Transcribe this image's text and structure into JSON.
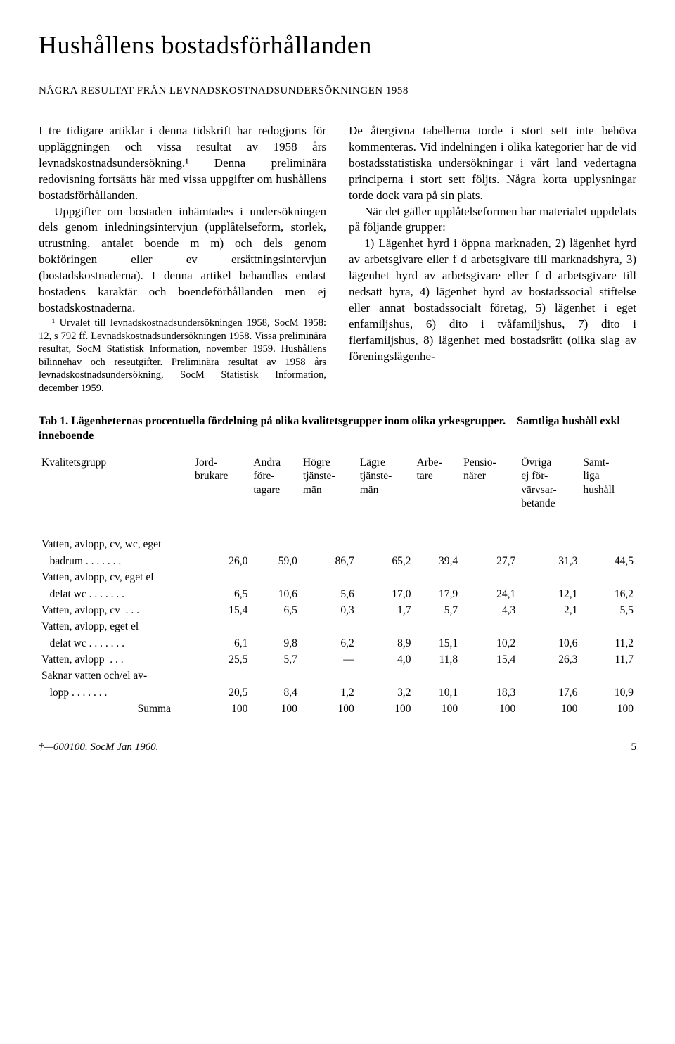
{
  "title": "Hushållens bostadsförhållanden",
  "subtitle": "NÅGRA RESULTAT FRÅN LEVNADSKOSTNADSUNDERSÖKNINGEN 1958",
  "body": {
    "col1_p1": "I tre tidigare artiklar i denna tidskrift har redogjorts för uppläggningen och vissa resultat av 1958 års levnadskostnadsundersökning.¹ Denna preliminära redovisning fortsätts här med vissa uppgifter om hushållens bostadsförhållanden.",
    "col1_p2": "Uppgifter om bostaden inhämtades i undersökningen dels genom inledningsintervjun (upplåtelseform, storlek, utrustning, antalet boende m m) och dels genom bokföringen eller ev ersättningsintervjun (bostadskostnaderna). I denna artikel behandlas endast bostadens karaktär och boendeförhållanden men ej bostadskostnaderna.",
    "col1_footnote": "¹ Urvalet till levnadskostnadsundersökningen 1958, SocM 1958: 12, s 792 ff. Levnadskostnadsundersökningen 1958. Vissa preliminära resultat, SocM Statistisk Information, november 1959. Hushållens bilinnehav och reseutgifter. Preliminära resultat av 1958 års levnadskostnadsundersökning, SocM Statistisk Information, december 1959.",
    "col2_p1": "De återgivna tabellerna torde i stort sett inte behöva kommenteras. Vid indelningen i olika kategorier har de vid bostadsstatistiska undersökningar i vårt land vedertagna principerna i stort sett följts. Några korta upplysningar torde dock vara på sin plats.",
    "col2_p2": "När det gäller upplåtelseformen har materialet uppdelats på följande grupper:",
    "col2_p3": "1) Lägenhet hyrd i öppna marknaden, 2) lägenhet hyrd av arbetsgivare eller f d arbetsgivare till marknadshyra, 3) lägenhet hyrd av arbetsgivare eller f d arbetsgivare till nedsatt hyra, 4) lägenhet hyrd av bostadssocial stiftelse eller annat bostadssocialt företag, 5) lägenhet i eget enfamiljshus, 6) dito i tvåfamiljshus, 7) dito i flerfamiljshus, 8) lägenhet med bostadsrätt (olika slag av föreningslägenhe-"
  },
  "table": {
    "caption_bold1": "Tab 1. Lägenheternas procentuella fördelning på olika kvalitetsgrupper inom olika yrkesgrupper.",
    "caption_bold2": "Samtliga hushåll exkl inneboende",
    "columns": [
      "Kvalitetsgrupp",
      "Jord-\nbrukare",
      "Andra\nföre-\ntagare",
      "Högre\ntjänste-\nmän",
      "Lägre\ntjänste-\nmän",
      "Arbe-\ntare",
      "Pensio-\nnärer",
      "Övriga\nej för-\nvärvsar-\nbetande",
      "Samt-\nliga\nhushåll"
    ],
    "rows": [
      {
        "label": "Vatten, avlopp, cv, wc, eget",
        "sublabel": "badrum",
        "values": [
          "26,0",
          "59,0",
          "86,7",
          "65,2",
          "39,4",
          "27,7",
          "31,3",
          "44,5"
        ]
      },
      {
        "label": "Vatten, avlopp, cv, eget el",
        "sublabel": "delat wc",
        "values": [
          "6,5",
          "10,6",
          "5,6",
          "17,0",
          "17,9",
          "24,1",
          "12,1",
          "16,2"
        ]
      },
      {
        "label": "Vatten, avlopp, cv",
        "sublabel": "",
        "values": [
          "15,4",
          "6,5",
          "0,3",
          "1,7",
          "5,7",
          "4,3",
          "2,1",
          "5,5"
        ]
      },
      {
        "label": "Vatten, avlopp, eget el",
        "sublabel": "delat wc",
        "values": [
          "6,1",
          "9,8",
          "6,2",
          "8,9",
          "15,1",
          "10,2",
          "10,6",
          "11,2"
        ]
      },
      {
        "label": "Vatten, avlopp",
        "sublabel": "",
        "values": [
          "25,5",
          "5,7",
          "—",
          "4,0",
          "11,8",
          "15,4",
          "26,3",
          "11,7"
        ]
      },
      {
        "label": "Saknar vatten och/el av-",
        "sublabel": "lopp",
        "values": [
          "20,5",
          "8,4",
          "1,2",
          "3,2",
          "10,1",
          "18,3",
          "17,6",
          "10,9"
        ]
      }
    ],
    "sum_label": "Summa",
    "sum_values": [
      "100",
      "100",
      "100",
      "100",
      "100",
      "100",
      "100",
      "100"
    ]
  },
  "footer": {
    "left": "†—600100. SocM Jan 1960.",
    "page": "5"
  }
}
